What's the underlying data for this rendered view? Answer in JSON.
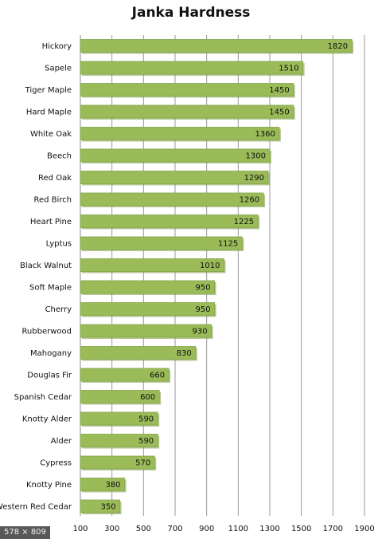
{
  "badge": "578 × 809",
  "chart_data": {
    "type": "bar",
    "orientation": "horizontal",
    "title": "Janka Hardness",
    "xlabel": "",
    "ylabel": "",
    "xlim": [
      100,
      1900
    ],
    "ticks": [
      100,
      300,
      500,
      700,
      900,
      1100,
      1300,
      1500,
      1700,
      1900
    ],
    "grid": true,
    "legend": "none",
    "bar_color": "#9bbb59",
    "bar_shadow_color": "#7a9a3e",
    "categories": [
      "Hickory",
      "Sapele",
      "Tiger Maple",
      "Hard Maple",
      "White Oak",
      "Beech",
      "Red Oak",
      "Red Birch",
      "Heart Pine",
      "Lyptus",
      "Black Walnut",
      "Soft Maple",
      "Cherry",
      "Rubberwood",
      "Mahogany",
      "Douglas Fir",
      "Spanish Cedar",
      "Knotty Alder",
      "Alder",
      "Cypress",
      "Knotty Pine",
      "Western Red Cedar"
    ],
    "values": [
      1820,
      1510,
      1450,
      1450,
      1360,
      1300,
      1290,
      1260,
      1225,
      1125,
      1010,
      950,
      950,
      930,
      830,
      660,
      600,
      590,
      590,
      570,
      380,
      350
    ]
  }
}
